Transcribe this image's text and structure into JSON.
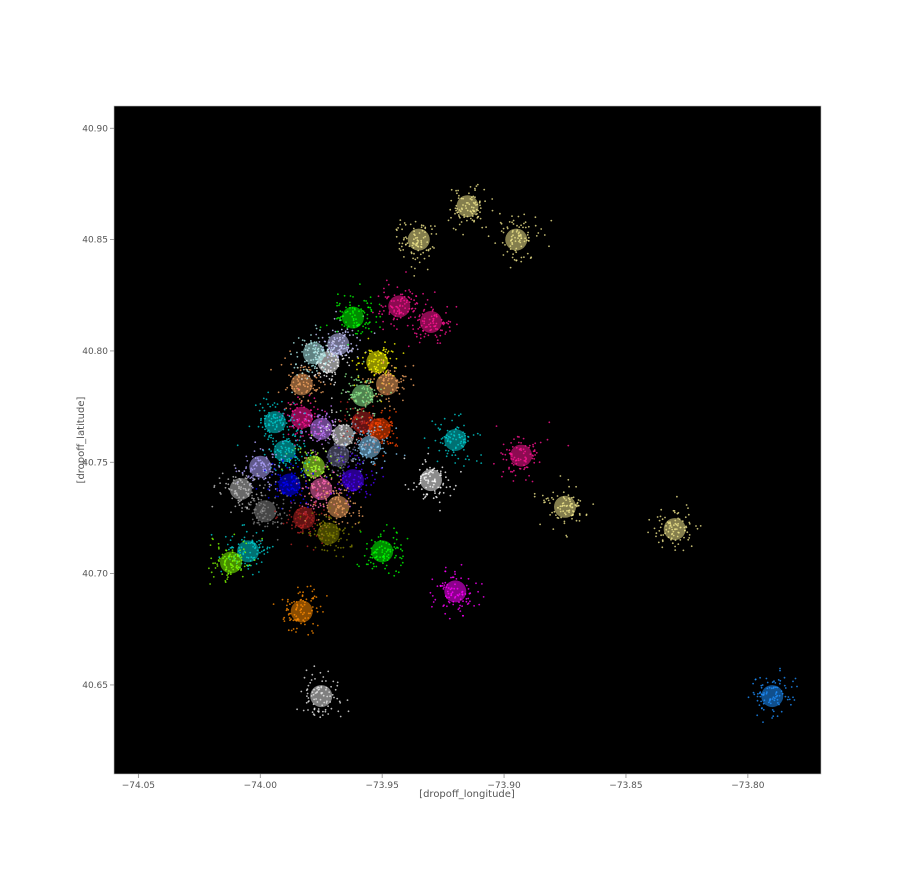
{
  "chart_data": {
    "type": "scatter",
    "title": "",
    "xlabel": "[dropoff_longitude]",
    "ylabel": "[dropoff_latitude]",
    "xlim": [
      -74.06,
      -73.77
    ],
    "ylim": [
      40.61,
      40.91
    ],
    "x_ticks": [
      -74.05,
      -74.0,
      -73.95,
      -73.9,
      -73.85,
      -73.8
    ],
    "x_tick_labels": [
      "−74.05",
      "−74.00",
      "−73.95",
      "−73.90",
      "−73.85",
      "−73.80"
    ],
    "y_ticks": [
      40.65,
      40.7,
      40.75,
      40.8,
      40.85,
      40.9
    ],
    "y_tick_labels": [
      "40.65",
      "40.70",
      "40.75",
      "40.80",
      "40.85",
      "40.90"
    ],
    "background": "#000000",
    "grid": false,
    "legend": "none",
    "point_clusters": [
      {
        "lon": -73.983,
        "lat": 40.77,
        "color": "#ff1493"
      },
      {
        "lon": -73.975,
        "lat": 40.765,
        "color": "#c27bff"
      },
      {
        "lon": -73.966,
        "lat": 40.762,
        "color": "#e8e8e8"
      },
      {
        "lon": -73.958,
        "lat": 40.768,
        "color": "#b22222"
      },
      {
        "lon": -73.951,
        "lat": 40.765,
        "color": "#ff4500"
      },
      {
        "lon": -73.955,
        "lat": 40.757,
        "color": "#87cefa"
      },
      {
        "lon": -73.968,
        "lat": 40.753,
        "color": "#6a6a8e"
      },
      {
        "lon": -73.978,
        "lat": 40.748,
        "color": "#adff2f"
      },
      {
        "lon": -73.99,
        "lat": 40.755,
        "color": "#00ced1"
      },
      {
        "lon": -74.0,
        "lat": 40.748,
        "color": "#b0a4ff"
      },
      {
        "lon": -73.988,
        "lat": 40.74,
        "color": "#0000ff"
      },
      {
        "lon": -73.975,
        "lat": 40.738,
        "color": "#ff69b4"
      },
      {
        "lon": -73.962,
        "lat": 40.742,
        "color": "#4b00ff"
      },
      {
        "lon": -73.998,
        "lat": 40.728,
        "color": "#808080"
      },
      {
        "lon": -73.982,
        "lat": 40.725,
        "color": "#b22222"
      },
      {
        "lon": -73.968,
        "lat": 40.73,
        "color": "#f4a460"
      },
      {
        "lon": -73.972,
        "lat": 40.718,
        "color": "#808000"
      },
      {
        "lon": -74.008,
        "lat": 40.738,
        "color": "#c0c0c0"
      },
      {
        "lon": -74.005,
        "lat": 40.71,
        "color": "#00ced1"
      },
      {
        "lon": -74.012,
        "lat": 40.705,
        "color": "#7fff00"
      },
      {
        "lon": -73.994,
        "lat": 40.768,
        "color": "#00ced1"
      },
      {
        "lon": -73.983,
        "lat": 40.785,
        "color": "#f4a460"
      },
      {
        "lon": -73.972,
        "lat": 40.795,
        "color": "#ffffff"
      },
      {
        "lon": -73.978,
        "lat": 40.799,
        "color": "#afeeee"
      },
      {
        "lon": -73.968,
        "lat": 40.803,
        "color": "#c8c8ff"
      },
      {
        "lon": -73.952,
        "lat": 40.795,
        "color": "#ffff00"
      },
      {
        "lon": -73.948,
        "lat": 40.785,
        "color": "#f4a460"
      },
      {
        "lon": -73.958,
        "lat": 40.78,
        "color": "#90ee90"
      },
      {
        "lon": -73.962,
        "lat": 40.815,
        "color": "#00ff00"
      },
      {
        "lon": -73.943,
        "lat": 40.82,
        "color": "#ff1493"
      },
      {
        "lon": -73.93,
        "lat": 40.813,
        "color": "#ff1493"
      },
      {
        "lon": -73.935,
        "lat": 40.85,
        "color": "#f0e68c"
      },
      {
        "lon": -73.915,
        "lat": 40.865,
        "color": "#f0e68c"
      },
      {
        "lon": -73.895,
        "lat": 40.85,
        "color": "#f0e68c"
      },
      {
        "lon": -73.92,
        "lat": 40.76,
        "color": "#00ced1"
      },
      {
        "lon": -73.93,
        "lat": 40.742,
        "color": "#ffffff"
      },
      {
        "lon": -73.893,
        "lat": 40.753,
        "color": "#ff1493"
      },
      {
        "lon": -73.875,
        "lat": 40.73,
        "color": "#f0e68c"
      },
      {
        "lon": -73.95,
        "lat": 40.71,
        "color": "#00ff00"
      },
      {
        "lon": -73.92,
        "lat": 40.692,
        "color": "#ff00ff"
      },
      {
        "lon": -73.983,
        "lat": 40.683,
        "color": "#ff8c00"
      },
      {
        "lon": -73.975,
        "lat": 40.645,
        "color": "#e8e8e8"
      },
      {
        "lon": -73.79,
        "lat": 40.645,
        "color": "#1e90ff"
      },
      {
        "lon": -73.83,
        "lat": 40.72,
        "color": "#f0e68c"
      }
    ]
  }
}
